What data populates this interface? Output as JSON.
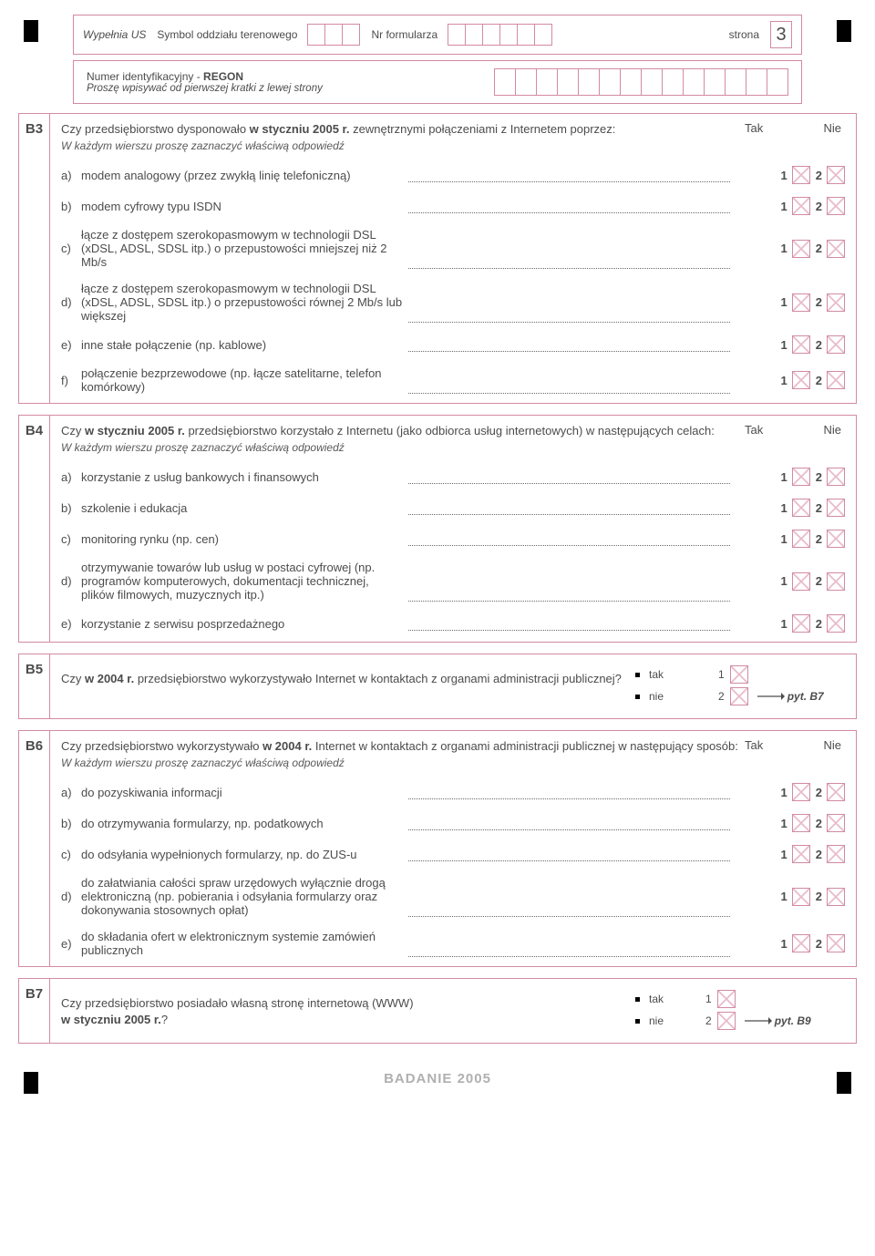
{
  "top": {
    "wypelnia": "Wypełnia US",
    "symbol": "Symbol oddziału terenowego",
    "nrform": "Nr formularza",
    "strona": "strona",
    "pageno": "3"
  },
  "regon": {
    "title_a": "Numer identyfikacyjny - ",
    "title_b": "REGON",
    "sub": "Proszę wpisywać od pierwszej kratki z lewej strony"
  },
  "taknie": {
    "tak": "Tak",
    "nie": "Nie"
  },
  "B3": {
    "id": "B3",
    "q1": "Czy przedsiębiorstwo dysponowało ",
    "q1b": "w styczniu 2005 r.",
    "q2": " zewnętrznymi połączeniami z Internetem  poprzez:",
    "sub": "W każdym wierszu proszę zaznaczyć właściwą odpowiedź",
    "items": [
      {
        "l": "a)",
        "t": "modem analogowy (przez zwykłą linię telefoniczną)"
      },
      {
        "l": "b)",
        "t": "modem cyfrowy typu ISDN"
      },
      {
        "l": "c)",
        "t": "łącze z dostępem szerokopasmowym w technologii DSL (xDSL, ADSL, SDSL itp.) o przepustowości mniejszej niż 2 Mb/s"
      },
      {
        "l": "d)",
        "t": "łącze z dostępem szerokopasmowym w technologii DSL (xDSL, ADSL, SDSL itp.) o przepustowości równej 2 Mb/s lub większej"
      },
      {
        "l": "e)",
        "t": "inne stałe połączenie (np. kablowe)"
      },
      {
        "l": "f)",
        "t": "połączenie bezprzewodowe (np. łącze satelitarne, telefon komórkowy)"
      }
    ]
  },
  "B4": {
    "id": "B4",
    "q1": "Czy ",
    "q1b": "w styczniu 2005 r.",
    "q2": " przedsiębiorstwo korzystało z Internetu (jako odbiorca usług internetowych) w następujących celach:",
    "sub": "W każdym wierszu proszę zaznaczyć właściwą odpowiedź",
    "items": [
      {
        "l": "a)",
        "t": "korzystanie z usług bankowych i finansowych"
      },
      {
        "l": "b)",
        "t": "szkolenie i edukacja"
      },
      {
        "l": "c)",
        "t": "monitoring rynku (np. cen)"
      },
      {
        "l": "d)",
        "t": "otrzymywanie towarów lub usług w postaci cyfrowej (np. programów komputerowych, dokumentacji technicznej, plików filmowych, muzycznych itp.)"
      },
      {
        "l": "e)",
        "t": "korzystanie z serwisu posprzedażnego"
      }
    ]
  },
  "B5": {
    "id": "B5",
    "q1": "Czy ",
    "q1b": "w 2004 r.",
    "q2": " przedsiębiorstwo wykorzystywało Internet w kontaktach z organami administracji publicznej?",
    "takline": "tak",
    "nieline": "nie",
    "goto": "pyt. B7"
  },
  "B6": {
    "id": "B6",
    "q1": "Czy przedsiębiorstwo wykorzystywało ",
    "q1b": "w 2004 r.",
    "q2": " Internet w kontaktach z organami administracji publicznej w następujący sposób:",
    "sub": "W każdym wierszu proszę zaznaczyć właściwą odpowiedź",
    "items": [
      {
        "l": "a)",
        "t": "do pozyskiwania informacji"
      },
      {
        "l": "b)",
        "t": "do otrzymywania formularzy, np. podatkowych"
      },
      {
        "l": "c)",
        "t": "do odsyłania wypełnionych formularzy, np. do ZUS-u"
      },
      {
        "l": "d)",
        "t": "do załatwiania całości spraw urzędowych wyłącznie drogą elektroniczną (np. pobierania i odsyłania formularzy oraz dokonywania stosownych opłat)"
      },
      {
        "l": "e)",
        "t": "do składania ofert w elektronicznym systemie zamówień publicznych"
      }
    ]
  },
  "B7": {
    "id": "B7",
    "q1": "Czy przedsiębiorstwo posiadało własną stronę internetową (WWW) ",
    "q1b": "w styczniu 2005 r.",
    "q2": "?",
    "takline": "tak",
    "nieline": "nie",
    "goto": "pyt. B9"
  },
  "footer": "BADANIE 2005",
  "ans": {
    "one": "1",
    "two": "2"
  }
}
